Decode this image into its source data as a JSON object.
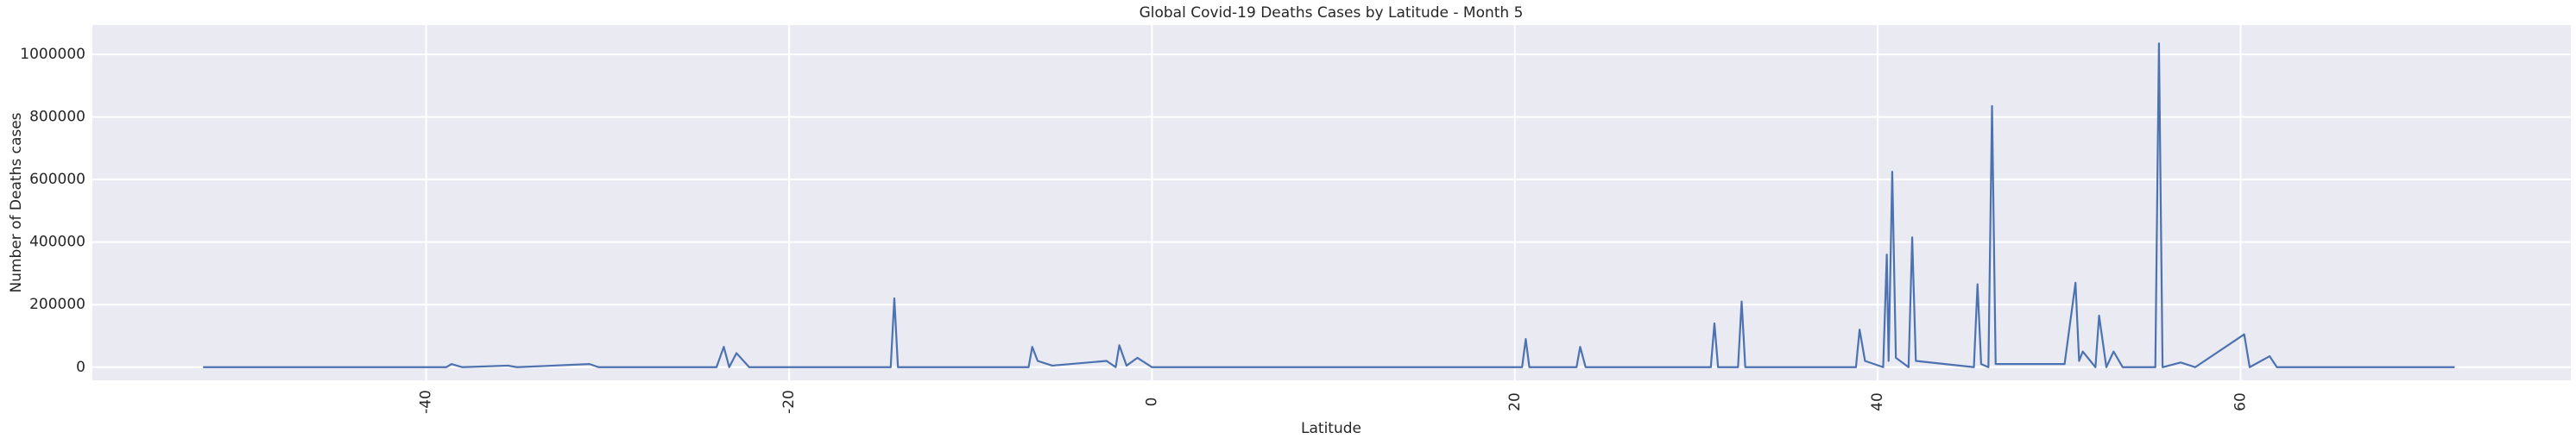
{
  "chart_data": {
    "type": "line",
    "title": "Global Covid-19 Deaths Cases by Latitude - Month 5",
    "x_label": "Latitude",
    "y_label": "Number of Deaths cases",
    "x": [
      -52.3,
      -38.9,
      -38.6,
      -38.0,
      -35.5,
      -35.0,
      -31.0,
      -30.5,
      -24.0,
      -23.6,
      -23.3,
      -22.9,
      -22.2,
      -14.4,
      -14.2,
      -14.0,
      -6.8,
      -6.6,
      -6.3,
      -5.5,
      -2.5,
      -2.0,
      -1.8,
      -1.4,
      -0.8,
      0,
      20.4,
      20.6,
      20.8,
      23.4,
      23.6,
      23.9,
      30.8,
      31.0,
      31.2,
      32.3,
      32.5,
      32.7,
      38.8,
      39.0,
      39.3,
      40.3,
      40.5,
      40.6,
      40.8,
      41.0,
      41.7,
      41.9,
      42.1,
      45.3,
      45.5,
      45.7,
      46.1,
      46.3,
      46.5,
      50.3,
      50.9,
      51.1,
      51.3,
      52.0,
      52.2,
      52.6,
      53.0,
      53.5,
      55.3,
      55.5,
      55.7,
      56.7,
      57.5,
      60.2,
      60.5,
      61.6,
      62.0,
      71.8
    ],
    "series": [
      {
        "name": "Deaths",
        "color": "#4c72b0",
        "values": [
          0,
          0,
          10000,
          0,
          5000,
          0,
          10000,
          0,
          0,
          65000,
          0,
          45000,
          0,
          0,
          220000,
          0,
          0,
          65000,
          20000,
          5000,
          20000,
          0,
          70000,
          5000,
          30000,
          0,
          0,
          90000,
          0,
          0,
          65000,
          0,
          0,
          140000,
          0,
          0,
          210000,
          0,
          0,
          120000,
          20000,
          0,
          360000,
          20000,
          625000,
          30000,
          0,
          415000,
          20000,
          0,
          265000,
          10000,
          0,
          835000,
          10000,
          10000,
          270000,
          20000,
          50000,
          0,
          165000,
          0,
          50000,
          0,
          0,
          1035000,
          0,
          15000,
          0,
          105000,
          0,
          35000,
          0,
          0
        ]
      }
    ],
    "xlim": [
      -58.4,
      78.2
    ],
    "ylim": [
      -42000,
      1094000
    ],
    "xticks": [
      -40,
      -20,
      0,
      20,
      40,
      60
    ],
    "yticks": [
      0,
      200000,
      400000,
      600000,
      800000,
      1000000
    ],
    "grid": true
  }
}
